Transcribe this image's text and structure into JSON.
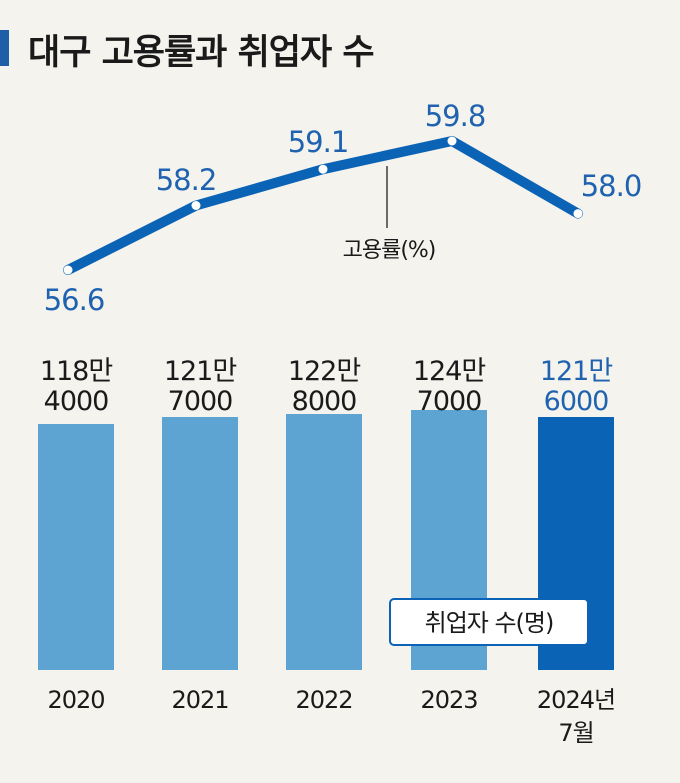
{
  "title": "대구 고용률과 취업자 수",
  "colors": {
    "line": "#0b63b5",
    "bar": "#5ea4d2",
    "bar_highlight": "#0b63b5",
    "text": "#1a1a1a",
    "highlight_text": "#1f63b0",
    "background": "#f5f3ee"
  },
  "chart_data": {
    "type": "bar+line",
    "title": "대구 고용률과 취업자 수",
    "categories": [
      "2020",
      "2021",
      "2022",
      "2023",
      "2024년 7월"
    ],
    "category_lines": [
      [
        "2020"
      ],
      [
        "2021"
      ],
      [
        "2022"
      ],
      [
        "2023"
      ],
      [
        "2024년",
        "7월"
      ]
    ],
    "series": [
      {
        "name": "고용률(%)",
        "type": "line",
        "values": [
          56.6,
          58.2,
          59.1,
          59.8,
          58.0
        ],
        "labels": [
          "56.6",
          "58.2",
          "59.1",
          "59.8",
          "58.0"
        ]
      },
      {
        "name": "취업자 수(명)",
        "type": "bar",
        "values": [
          1184000,
          1217000,
          1228000,
          1247000,
          1216000
        ],
        "label_lines": [
          [
            "118만",
            "4000"
          ],
          [
            "121만",
            "7000"
          ],
          [
            "122만",
            "8000"
          ],
          [
            "124만",
            "7000"
          ],
          [
            "121만",
            "6000"
          ]
        ]
      }
    ],
    "highlight_index": 4,
    "grid": false
  }
}
